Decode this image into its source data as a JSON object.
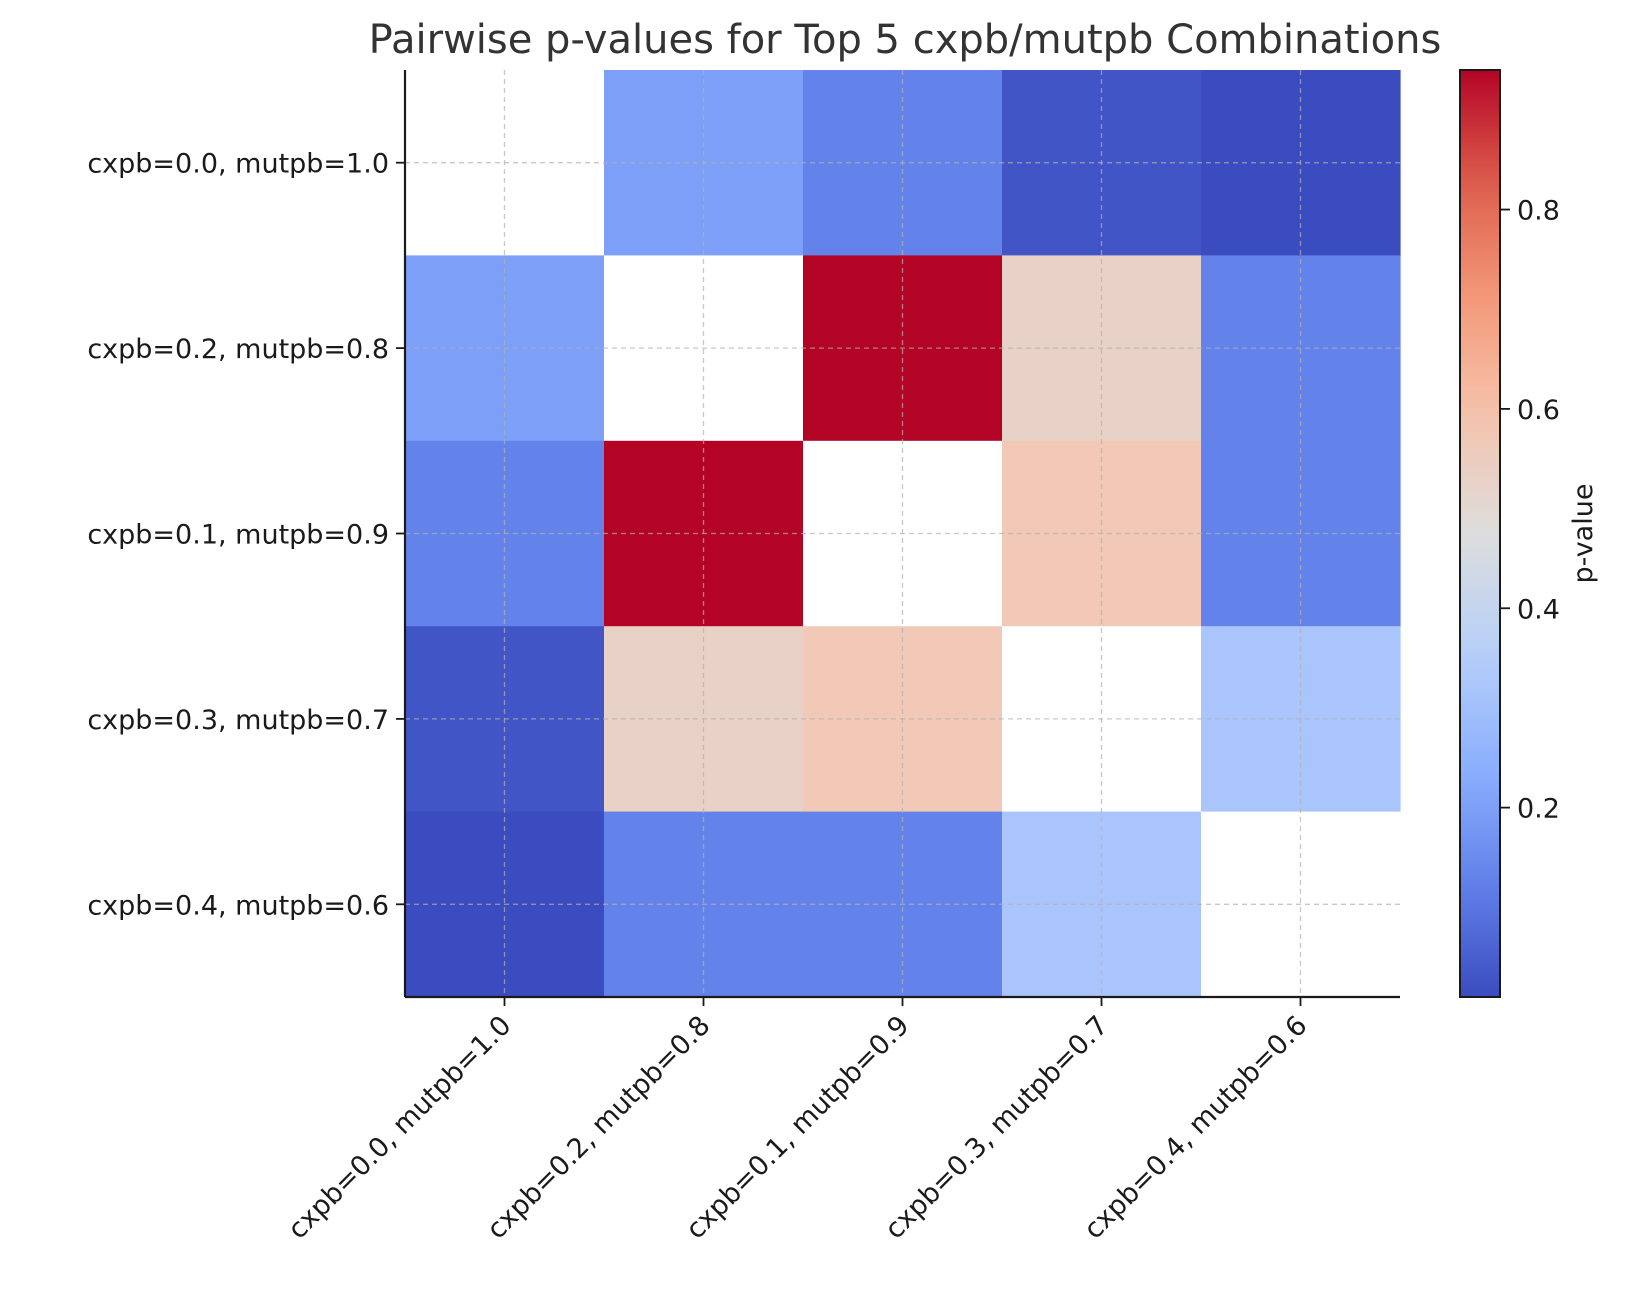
{
  "chart_data": {
    "type": "heatmap",
    "title": "Pairwise p-values for Top 5 cxpb/mutpb Combinations",
    "rows": [
      "cxpb=0.0, mutpb=1.0",
      "cxpb=0.2, mutpb=0.8",
      "cxpb=0.1, mutpb=0.9",
      "cxpb=0.3, mutpb=0.7",
      "cxpb=0.4, mutpb=0.6"
    ],
    "columns": [
      "cxpb=0.0, mutpb=1.0",
      "cxpb=0.2, mutpb=0.8",
      "cxpb=0.1, mutpb=0.9",
      "cxpb=0.3, mutpb=0.7",
      "cxpb=0.4, mutpb=0.6"
    ],
    "values": [
      [
        null,
        0.2,
        0.13,
        0.03,
        0.01
      ],
      [
        0.2,
        null,
        0.94,
        0.53,
        0.13
      ],
      [
        0.13,
        0.94,
        null,
        0.57,
        0.13
      ],
      [
        0.03,
        0.53,
        0.57,
        null,
        0.32
      ],
      [
        0.01,
        0.13,
        0.13,
        0.32,
        null
      ]
    ],
    "colorbar": {
      "label": "p-value",
      "range": [
        0.01,
        0.94
      ],
      "ticks": [
        0.2,
        0.4,
        0.6,
        0.8
      ],
      "colormap": "coolwarm"
    },
    "grid": true,
    "diagonal": "blank"
  }
}
